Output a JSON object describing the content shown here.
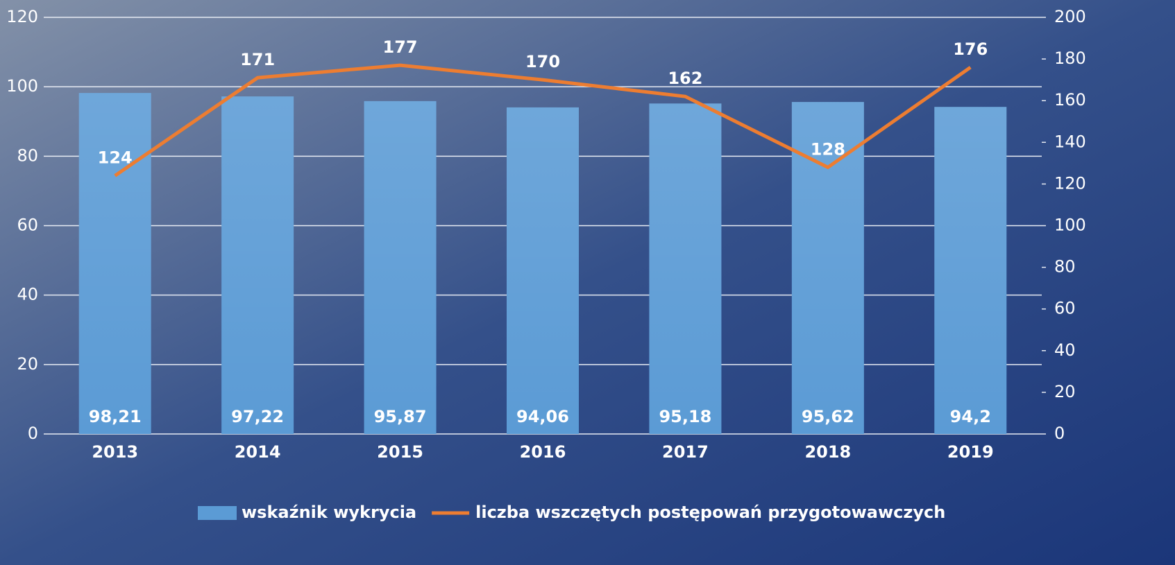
{
  "chart_data": {
    "type": "bar",
    "categories": [
      "2013",
      "2014",
      "2015",
      "2016",
      "2017",
      "2018",
      "2019"
    ],
    "series": [
      {
        "name": "wskaźnik wykrycia",
        "type": "bar",
        "color": "#5b9bd5",
        "values": [
          98.21,
          97.22,
          95.87,
          94.06,
          95.18,
          95.62,
          94.2
        ],
        "value_labels": [
          "98,21",
          "97,22",
          "95,87",
          "94,06",
          "95,18",
          "95,62",
          "94,2"
        ]
      },
      {
        "name": "liczba wszczętych postępowań przygotowawczych",
        "type": "line",
        "color": "#ed7d31",
        "axis": "y2",
        "values": [
          124,
          171,
          177,
          170,
          162,
          128,
          176
        ]
      }
    ],
    "ylim": [
      0,
      120
    ],
    "yticks": [
      0,
      20,
      40,
      60,
      80,
      100,
      120
    ],
    "y2lim": [
      0,
      200
    ],
    "y2ticks": [
      0,
      20,
      40,
      60,
      80,
      100,
      120,
      140,
      160,
      180,
      200
    ],
    "grid": true,
    "legend": "bottom"
  }
}
